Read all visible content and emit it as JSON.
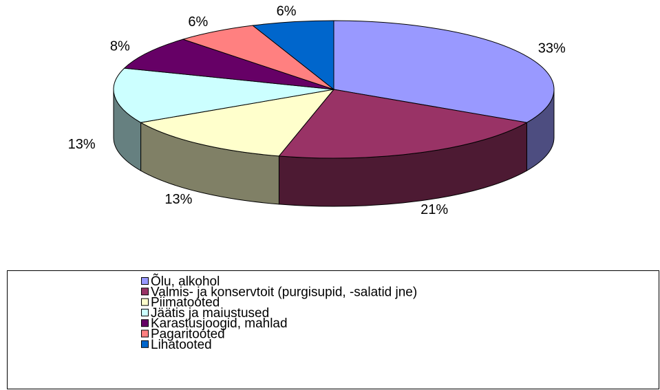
{
  "chart_data": {
    "type": "pie3d",
    "categories": [
      "Õlu, alkohol",
      "Valmis- ja konservtoit  (purgisupid, -salatid jne)",
      "Piimatooted",
      "Jäätis ja maiustused",
      "Karastusjoogid, mahlad",
      "Pagaritooted",
      "Lihatooted"
    ],
    "values": [
      33,
      21,
      13,
      13,
      8,
      6,
      6
    ],
    "value_labels": [
      "33%",
      "21%",
      "13%",
      "13%",
      "8%",
      "6%",
      "6%"
    ],
    "colors": [
      "#9999ff",
      "#993366",
      "#ffffcc",
      "#ccffff",
      "#660066",
      "#ff8080",
      "#0066cc"
    ]
  }
}
